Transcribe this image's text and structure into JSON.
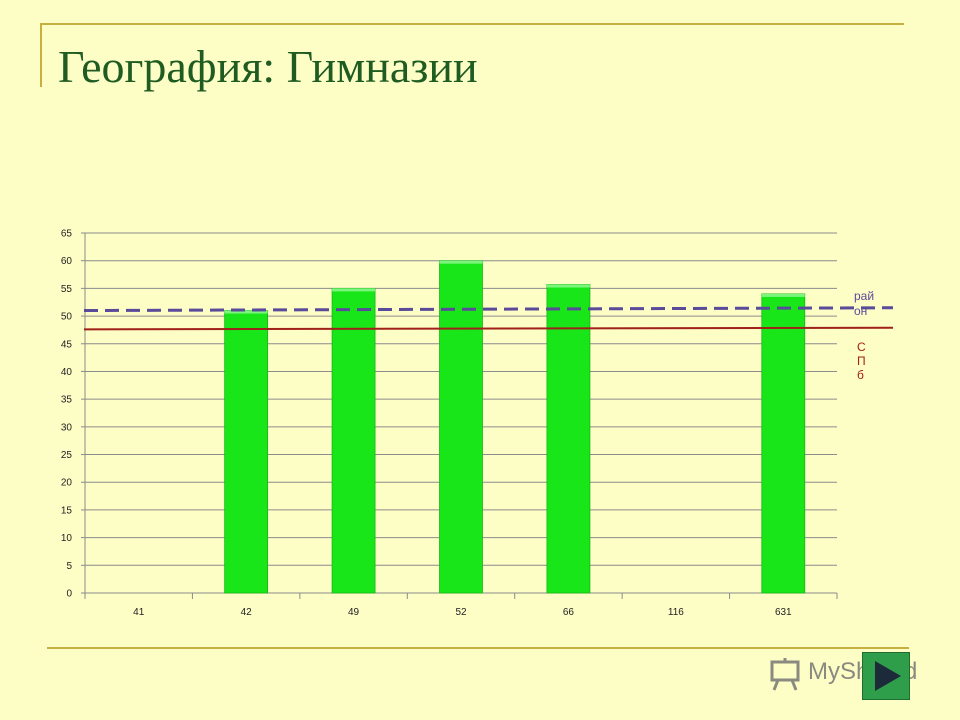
{
  "slide": {
    "title": "География: Гимназии"
  },
  "watermark": {
    "text": "MyShared"
  },
  "nav": {
    "icon": "play-arrow-icon"
  },
  "colors": {
    "background": "#fdfdc6",
    "frame": "#c8b040",
    "title": "#1f5c22",
    "bar": "#19e619",
    "district_line": "#5a4a9a",
    "spb_line": "#a0201a"
  },
  "chart_data": {
    "type": "bar",
    "categories": [
      "41",
      "42",
      "49",
      "52",
      "66",
      "116",
      "631"
    ],
    "values": [
      null,
      51,
      55,
      60,
      55.7,
      null,
      54
    ],
    "ylim": [
      0,
      65
    ],
    "yticks": [
      0,
      5,
      10,
      15,
      20,
      25,
      30,
      35,
      40,
      45,
      50,
      55,
      60,
      65
    ],
    "grid": true,
    "reference_lines": [
      {
        "name": "район",
        "label_lines": [
          "рай",
          "он"
        ],
        "start": 51.0,
        "end": 51.5,
        "style": "dashed",
        "color": "#5a4a9a"
      },
      {
        "name": "СПб",
        "label_lines": [
          "С",
          "П",
          "б"
        ],
        "start": 47.6,
        "end": 47.9,
        "style": "solid",
        "color": "#a0201a"
      }
    ]
  }
}
